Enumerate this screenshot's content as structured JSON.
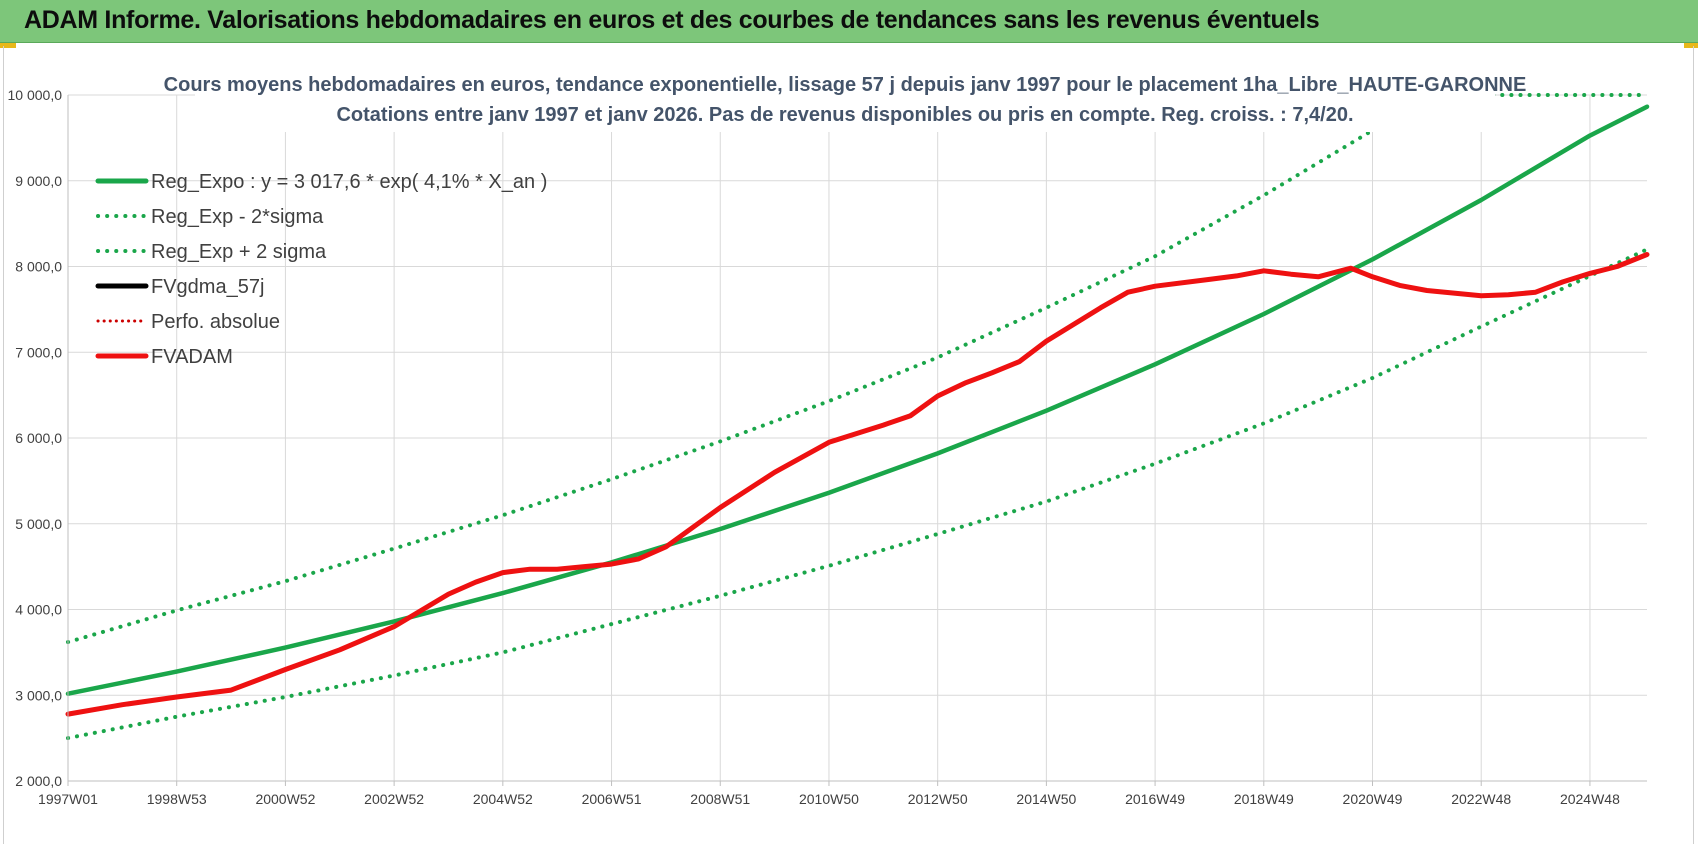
{
  "header": {
    "title": "ADAM Informe. Valorisations hebdomadaires en euros et des courbes de tendances sans les revenus éventuels"
  },
  "colors": {
    "header_bg": "#7dc67a",
    "reg_green": "#1aa64a",
    "fvadam_red": "#ee1111",
    "perfo_red": "#cc0000",
    "fvgdma_black": "#000000",
    "grid": "#d9d9d9"
  },
  "chart_data": {
    "type": "line",
    "title": "Cours moyens  hebdomadaires en euros, tendance exponentielle, lissage 57 j depuis janv 1997 pour le placement 1ha_Libre_HAUTE-GARONNE",
    "subtitle": "Cotations entre janv 1997 et janv 2026. Pas de revenus disponibles ou pris  en compte. Reg. croiss. : 7,4/20.",
    "xlabel": "",
    "ylabel": "",
    "ylim": [
      2000,
      10000
    ],
    "yticks": [
      "2 000,0",
      "3 000,0",
      "4 000,0",
      "5 000,0",
      "6 000,0",
      "7 000,0",
      "8 000,0",
      "9 000,0",
      "10 000,0"
    ],
    "ytick_values": [
      2000,
      3000,
      4000,
      5000,
      6000,
      7000,
      8000,
      9000,
      10000
    ],
    "xlim": [
      1997.0,
      2026.05
    ],
    "xticks": [
      "1997W01",
      "1998W53",
      "2000W52",
      "2002W52",
      "2004W52",
      "2006W51",
      "2008W51",
      "2010W50",
      "2012W50",
      "2014W50",
      "2016W49",
      "2018W49",
      "2020W49",
      "2022W48",
      "2024W48"
    ],
    "xtick_values": [
      1997.0,
      1999.0,
      2001.0,
      2003.0,
      2005.0,
      2007.0,
      2009.0,
      2011.0,
      2013.0,
      2015.0,
      2017.0,
      2019.0,
      2021.0,
      2023.0,
      2025.0
    ],
    "grid": true,
    "legend_position": "top-left",
    "legend": [
      {
        "label": "Reg_Expo : y = 3 017,6 * exp( 4,1% *  X_an )",
        "color": "#1aa64a",
        "style": "solid"
      },
      {
        "label": "Reg_Exp - 2*sigma",
        "color": "#1aa64a",
        "style": "dotted"
      },
      {
        "label": "Reg_Exp + 2 sigma",
        "color": "#1aa64a",
        "style": "dotted"
      },
      {
        "label": "FVgdma_57j",
        "color": "#000000",
        "style": "solid"
      },
      {
        "label": "Perfo. absolue",
        "color": "#cc0000",
        "style": "dotted"
      },
      {
        "label": "FVADAM",
        "color": "#ee1111",
        "style": "solid"
      }
    ],
    "series": [
      {
        "name": "Reg_Expo : y = 3 017,6 * exp( 4,1% *  X_an )",
        "color": "#1aa64a",
        "style": "solid",
        "x": [
          1997.0,
          1999.0,
          2001.0,
          2003.0,
          2005.0,
          2007.0,
          2009.0,
          2011.0,
          2013.0,
          2015.0,
          2017.0,
          2019.0,
          2021.0,
          2023.0,
          2025.0,
          2026.05
        ],
        "y": [
          3017.6,
          3276,
          3556,
          3861,
          4191,
          4549,
          4939,
          5362,
          5820,
          6318,
          6859,
          7446,
          8083,
          8775,
          9526,
          9863
        ]
      },
      {
        "name": "Reg_Exp - 2*sigma",
        "color": "#1aa64a",
        "style": "dotted",
        "x": [
          1997.0,
          1999.0,
          2001.0,
          2003.0,
          2005.0,
          2007.0,
          2009.0,
          2011.0,
          2013.0,
          2015.0,
          2017.0,
          2019.0,
          2021.0,
          2023.0,
          2025.0,
          2026.05
        ],
        "y": [
          2500,
          2750,
          2980,
          3230,
          3500,
          3830,
          4160,
          4510,
          4880,
          5260,
          5700,
          6170,
          6700,
          7300,
          7890,
          8200
        ]
      },
      {
        "name": "Reg_Exp + 2 sigma",
        "color": "#1aa64a",
        "style": "dotted",
        "x": [
          1997.0,
          1999.0,
          2001.0,
          2003.0,
          2005.0,
          2007.0,
          2009.0,
          2011.0,
          2013.0,
          2015.0,
          2017.0,
          2019.0,
          2020.9,
          2022.0,
          2024.0,
          2026.05
        ],
        "y": [
          3620,
          3990,
          4330,
          4710,
          5100,
          5520,
          5960,
          6430,
          6940,
          7520,
          8120,
          8830,
          9550,
          10000,
          10000,
          10000
        ]
      },
      {
        "name": "FVADAM",
        "color": "#ee1111",
        "style": "solid",
        "x": [
          1997.0,
          1998.0,
          1999.0,
          2000.0,
          2001.0,
          2002.0,
          2003.0,
          2004.0,
          2004.5,
          2005.0,
          2005.5,
          2006.0,
          2006.5,
          2007.0,
          2007.5,
          2008.0,
          2009.0,
          2010.0,
          2011.0,
          2012.0,
          2012.5,
          2013.0,
          2013.5,
          2014.0,
          2014.5,
          2015.0,
          2016.0,
          2016.5,
          2017.0,
          2018.0,
          2018.5,
          2019.0,
          2019.5,
          2020.0,
          2020.6,
          2021.0,
          2021.5,
          2022.0,
          2022.5,
          2023.0,
          2023.5,
          2024.0,
          2024.5,
          2025.0,
          2025.5,
          2026.05
        ],
        "y": [
          2780,
          2890,
          2980,
          3060,
          3300,
          3530,
          3800,
          4180,
          4320,
          4430,
          4470,
          4470,
          4500,
          4530,
          4590,
          4730,
          5190,
          5600,
          5950,
          6150,
          6260,
          6490,
          6640,
          6760,
          6890,
          7130,
          7520,
          7700,
          7770,
          7850,
          7890,
          7950,
          7910,
          7880,
          7980,
          7880,
          7780,
          7720,
          7690,
          7660,
          7670,
          7700,
          7820,
          7920,
          8000,
          8140
        ]
      }
    ]
  }
}
